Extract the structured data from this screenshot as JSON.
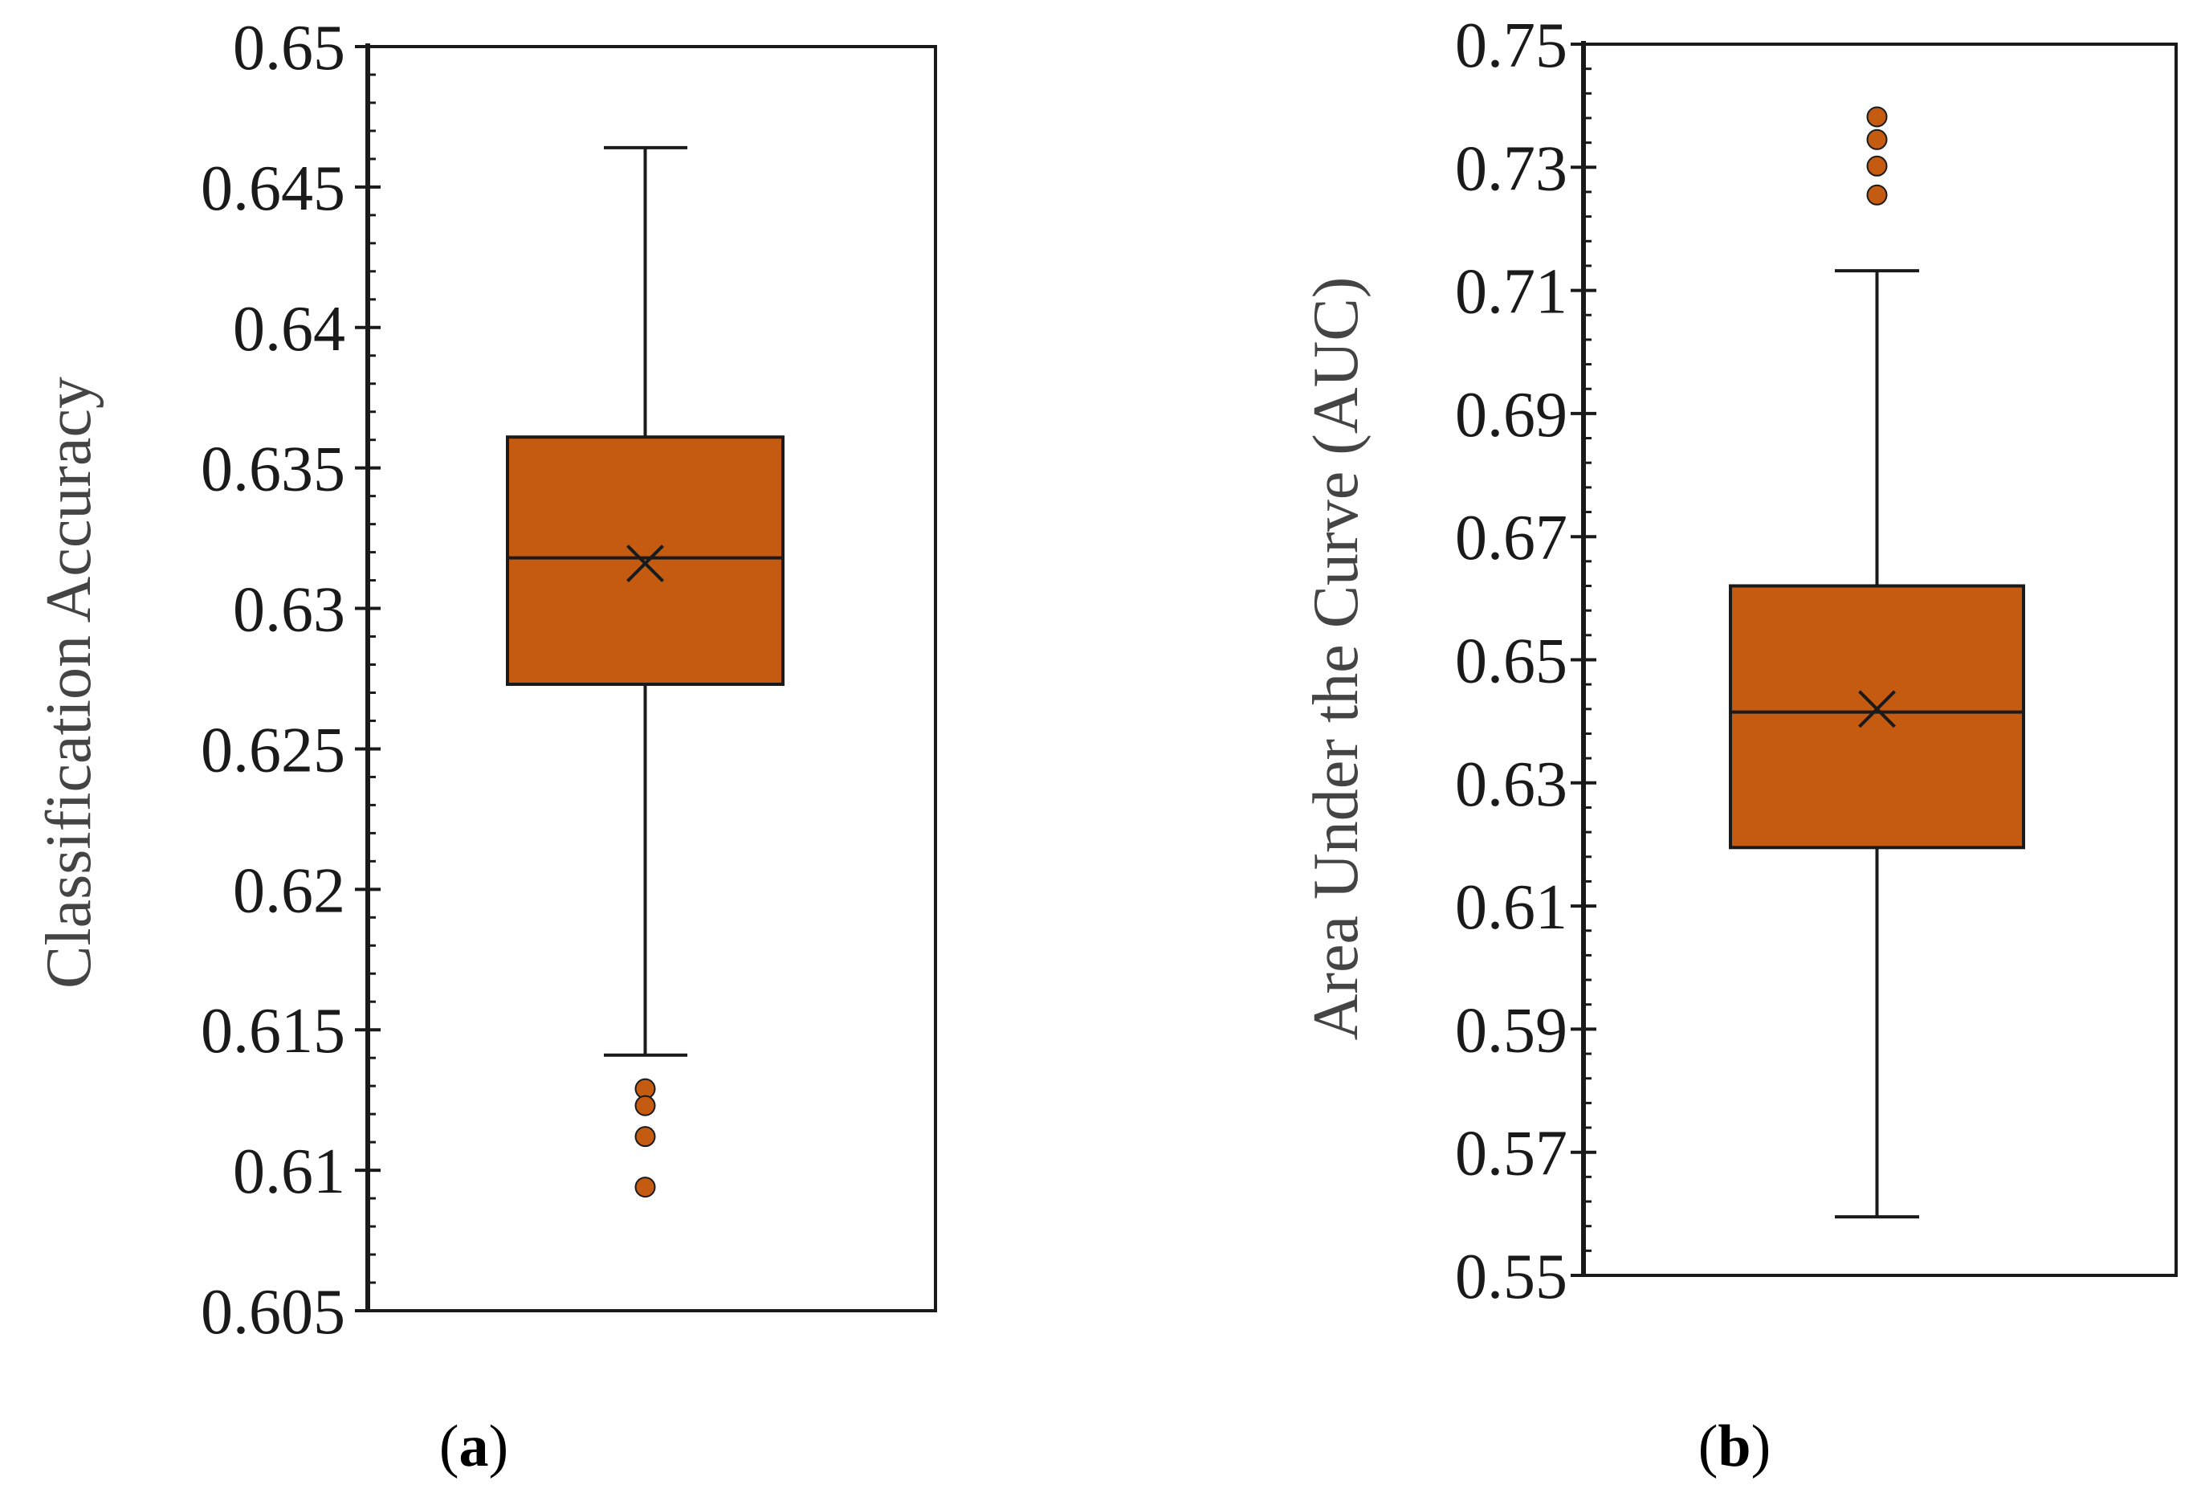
{
  "colors": {
    "box_fill": "#C55A11",
    "box_stroke": "#1a1a1a",
    "outlier_fill": "#C55A11",
    "axis": "#1a1a1a",
    "background": "#ffffff"
  },
  "chart_data": [
    {
      "type": "box",
      "panel": "a",
      "panel_label": {
        "open": "(",
        "letter": "a",
        "close": ")"
      },
      "title": "",
      "xlabel": "",
      "ylabel": "Classification  Accuracy",
      "ylim": [
        0.605,
        0.65
      ],
      "yticks": [
        0.605,
        0.61,
        0.615,
        0.62,
        0.625,
        0.63,
        0.635,
        0.64,
        0.645,
        0.65
      ],
      "ytick_labels": [
        "0.605",
        "0.61",
        "0.615",
        "0.62",
        "0.625",
        "0.63",
        "0.635",
        "0.64",
        "0.645",
        "0.65"
      ],
      "minor_ticks_per_major": 5,
      "grid": false,
      "box": {
        "whisker_low": 0.6141,
        "q1": 0.6273,
        "median": 0.6318,
        "mean": 0.6316,
        "q3": 0.6361,
        "whisker_high": 0.6464
      },
      "outliers": [
        0.6129,
        0.6123,
        0.6112,
        0.6094
      ]
    },
    {
      "type": "box",
      "panel": "b",
      "panel_label": {
        "open": "(",
        "letter": "b",
        "close": ")"
      },
      "title": "",
      "xlabel": "",
      "ylabel": "Area Under the Curve (AUC)",
      "ylim": [
        0.55,
        0.75
      ],
      "yticks": [
        0.55,
        0.57,
        0.59,
        0.61,
        0.63,
        0.65,
        0.67,
        0.69,
        0.71,
        0.73,
        0.75
      ],
      "ytick_labels": [
        "0.55",
        "0.57",
        "0.59",
        "0.61",
        "0.63",
        "0.65",
        "0.67",
        "0.69",
        "0.71",
        "0.73",
        "0.75"
      ],
      "minor_ticks_per_major": 5,
      "grid": false,
      "box": {
        "whisker_low": 0.5595,
        "q1": 0.6195,
        "median": 0.6415,
        "mean": 0.642,
        "q3": 0.662,
        "whisker_high": 0.7132
      },
      "outliers": [
        0.7382,
        0.7345,
        0.7302,
        0.7255
      ]
    }
  ]
}
